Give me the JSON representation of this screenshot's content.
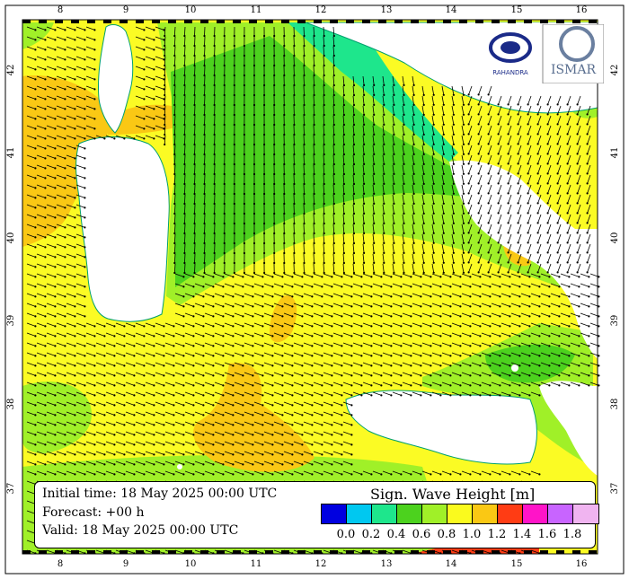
{
  "map": {
    "lon_ticks": [
      "8",
      "9",
      "10",
      "11",
      "12",
      "13",
      "14",
      "15",
      "16"
    ],
    "lat_ticks": [
      "42",
      "41",
      "40",
      "39",
      "38",
      "37"
    ],
    "colors": {
      "sea_background": "#fbfb24",
      "land": "#ffffff",
      "frame": "#000000"
    }
  },
  "info": {
    "initial_time": "Initial time: 18 May 2025 00:00 UTC",
    "forecast": "Forecast: +00 h",
    "valid": "Valid: 18 May 2025 00:00 UTC"
  },
  "legend": {
    "title": "Sign. Wave Height [m]",
    "labels": [
      "0.0",
      "0.2",
      "0.4",
      "0.6",
      "0.8",
      "1.0",
      "1.2",
      "1.4",
      "1.6",
      "1.8"
    ],
    "colors": [
      "#0000e0",
      "#00c8f0",
      "#1ee68c",
      "#4cd21e",
      "#a0f028",
      "#fafa1e",
      "#fac814",
      "#ff3c14",
      "#ff14c8",
      "#c864ff",
      "#f0b4f0"
    ]
  },
  "logos": {
    "left_text": "RAHANDRA",
    "right_text": "ISMAR"
  }
}
